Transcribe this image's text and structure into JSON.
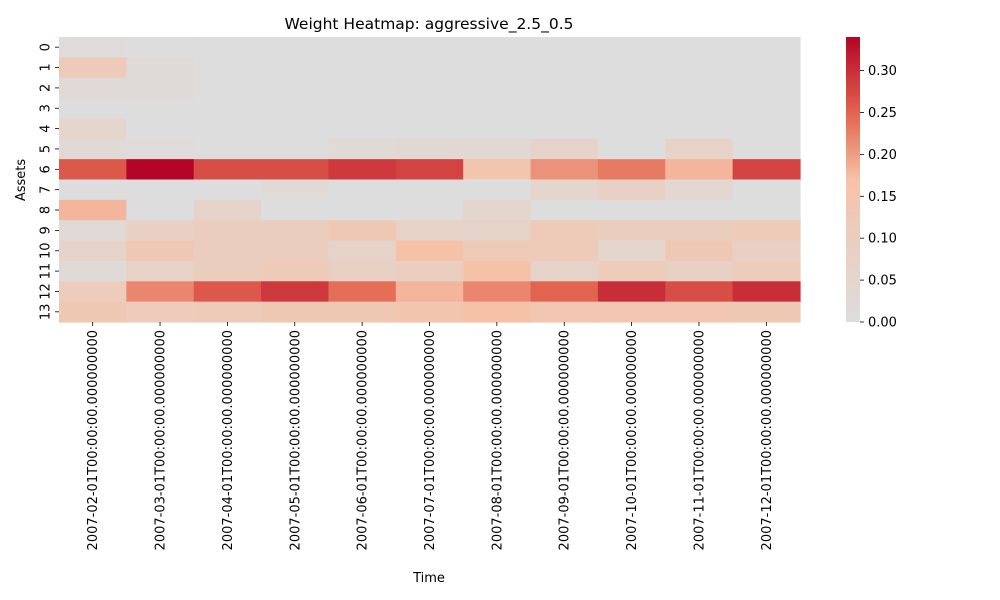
{
  "chart_data": {
    "type": "heatmap",
    "title": "Weight Heatmap: aggressive_2.5_0.5",
    "xlabel": "Time",
    "ylabel": "Assets",
    "x_categories": [
      "2007-02-01T00:00:00.000000000",
      "2007-03-01T00:00:00.000000000",
      "2007-04-01T00:00:00.000000000",
      "2007-05-01T00:00:00.000000000",
      "2007-06-01T00:00:00.000000000",
      "2007-07-01T00:00:00.000000000",
      "2007-08-01T00:00:00.000000000",
      "2007-09-01T00:00:00.000000000",
      "2007-10-01T00:00:00.000000000",
      "2007-11-01T00:00:00.000000000",
      "2007-12-01T00:00:00.000000000"
    ],
    "y_categories": [
      "0",
      "1",
      "2",
      "3",
      "4",
      "5",
      "6",
      "7",
      "8",
      "9",
      "10",
      "11",
      "12",
      "13"
    ],
    "values": [
      [
        0.01,
        0.0,
        0.0,
        0.0,
        0.0,
        0.0,
        0.0,
        0.0,
        0.0,
        0.0,
        0.0
      ],
      [
        0.12,
        0.02,
        0.0,
        0.0,
        0.0,
        0.0,
        0.0,
        0.0,
        0.0,
        0.0,
        0.0
      ],
      [
        0.02,
        0.02,
        0.0,
        0.0,
        0.0,
        0.0,
        0.0,
        0.0,
        0.0,
        0.0,
        0.0
      ],
      [
        0.0,
        0.0,
        0.0,
        0.0,
        0.0,
        0.0,
        0.0,
        0.0,
        0.0,
        0.0,
        0.0
      ],
      [
        0.05,
        0.0,
        0.0,
        0.0,
        0.0,
        0.0,
        0.0,
        0.0,
        0.0,
        0.0,
        0.0
      ],
      [
        0.02,
        0.01,
        0.0,
        0.0,
        0.02,
        0.03,
        0.03,
        0.06,
        0.0,
        0.07,
        0.0
      ],
      [
        0.26,
        0.34,
        0.27,
        0.27,
        0.29,
        0.28,
        0.15,
        0.21,
        0.23,
        0.18,
        0.28
      ],
      [
        0.0,
        0.0,
        0.0,
        0.02,
        0.0,
        0.0,
        0.0,
        0.05,
        0.08,
        0.04,
        0.0
      ],
      [
        0.18,
        0.0,
        0.06,
        0.0,
        0.0,
        0.0,
        0.05,
        0.0,
        0.0,
        0.0,
        0.0
      ],
      [
        0.02,
        0.08,
        0.1,
        0.1,
        0.13,
        0.07,
        0.06,
        0.12,
        0.1,
        0.1,
        0.12
      ],
      [
        0.06,
        0.13,
        0.1,
        0.1,
        0.06,
        0.17,
        0.12,
        0.12,
        0.05,
        0.13,
        0.08
      ],
      [
        0.02,
        0.07,
        0.1,
        0.12,
        0.08,
        0.09,
        0.17,
        0.06,
        0.11,
        0.08,
        0.11
      ],
      [
        0.11,
        0.22,
        0.26,
        0.29,
        0.24,
        0.18,
        0.22,
        0.25,
        0.3,
        0.27,
        0.3
      ],
      [
        0.13,
        0.11,
        0.12,
        0.13,
        0.13,
        0.15,
        0.17,
        0.14,
        0.14,
        0.14,
        0.13
      ]
    ],
    "vmin": 0.0,
    "vmax": 0.34,
    "colormap": "coolwarm-upper-half",
    "colors": {
      "low": "#dddddd",
      "mid": "#f5c2a8",
      "high": "#b40426"
    },
    "colorbar_ticks": [
      "0.00",
      "0.05",
      "0.10",
      "0.15",
      "0.20",
      "0.25",
      "0.30"
    ],
    "grid": false,
    "legend": "colorbar-right"
  }
}
